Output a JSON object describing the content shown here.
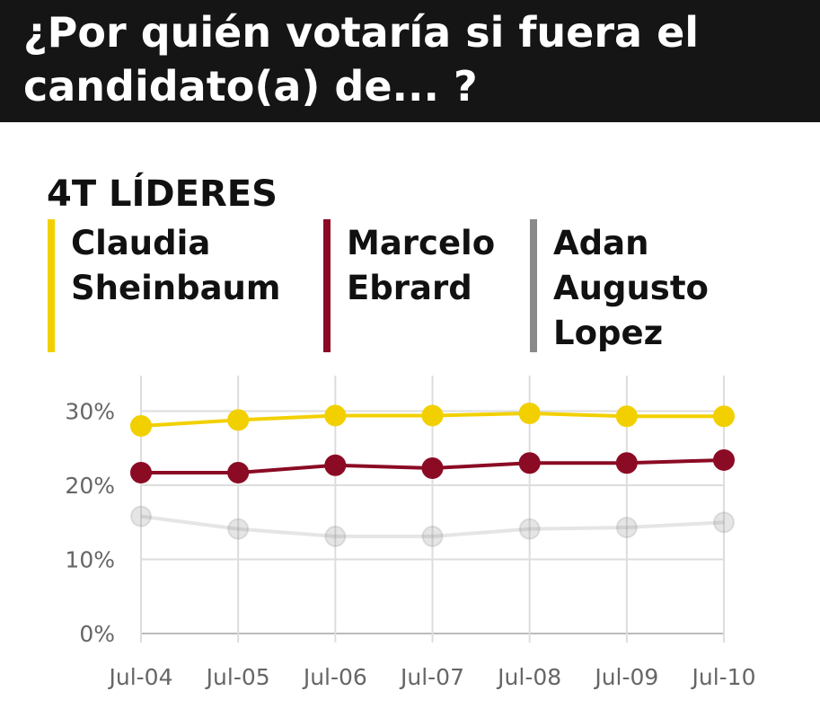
{
  "header": {
    "title": "¿Por quién votaría si fuera el candidato(a) de... ?"
  },
  "subtitle": "4T LÍDERES",
  "colors": {
    "header_bg": "#151515",
    "grid": "#dddddd",
    "axis": "#bbbbbb"
  },
  "chart_data": {
    "type": "line",
    "title": "¿Por quién votaría si fuera el candidato(a) de... ?",
    "subtitle": "4T LÍDERES",
    "categories": [
      "Jul-04",
      "Jul-05",
      "Jul-06",
      "Jul-07",
      "Jul-08",
      "Jul-09",
      "Jul-10"
    ],
    "y_ticks": [
      "0%",
      "10%",
      "20%",
      "30%"
    ],
    "ylim": [
      0,
      35
    ],
    "grid": true,
    "legend_position": "top",
    "series": [
      {
        "name": "Claudia Sheinbaum",
        "label": "Claudia\nSheinbaum",
        "color": "#f2d000",
        "opacity": 1,
        "values": [
          28.0,
          28.8,
          29.4,
          29.4,
          29.7,
          29.3,
          29.3
        ]
      },
      {
        "name": "Marcelo Ebrard",
        "label": "Marcelo\nEbrard",
        "color": "#8b0b24",
        "opacity": 1,
        "values": [
          21.7,
          21.7,
          22.7,
          22.3,
          23.0,
          23.0,
          23.4
        ]
      },
      {
        "name": "Adan Augusto Lopez",
        "label": "Adan\nAugusto\nLopez",
        "color": "#8a8a8a",
        "opacity": 0.22,
        "values": [
          15.8,
          14.1,
          13.1,
          13.1,
          14.1,
          14.3,
          15.0
        ]
      }
    ]
  }
}
